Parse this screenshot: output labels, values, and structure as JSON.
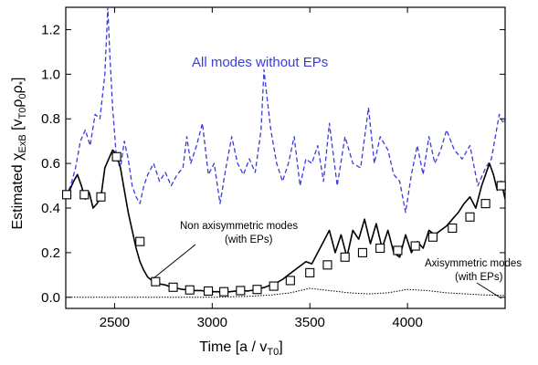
{
  "chart_data": {
    "type": "line",
    "xlabel": "Time [a / v_T0]",
    "ylabel": "Estimated χ_ExB [v_T0 ρ_0 ρ_*]",
    "xlim": [
      2250,
      4500
    ],
    "ylim": [
      -0.05,
      1.3
    ],
    "x_ticks": [
      2500,
      3000,
      3500,
      4000
    ],
    "y_ticks": [
      0.0,
      0.2,
      0.4,
      0.6,
      0.8,
      1.0,
      1.2
    ],
    "x_tick_labels": [
      "2500",
      "3000",
      "3500",
      "4000"
    ],
    "y_tick_labels": [
      "0.0",
      "0.2",
      "0.4",
      "0.6",
      "0.8",
      "1.0",
      "1.2"
    ],
    "grid": false,
    "annotations": [
      {
        "text": "All modes without EPs",
        "color": "#3b3bdc"
      },
      {
        "line1": "Non axisymmetric modes",
        "line2": "(with EPs)"
      },
      {
        "line1": "Axisymmetric modes",
        "line2": "(with EPs)"
      }
    ],
    "series": [
      {
        "style": "dashed",
        "color": "#3b3bdc",
        "x": [
          2250,
          2275,
          2300,
          2325,
          2350,
          2375,
          2400,
          2425,
          2450,
          2465,
          2475,
          2490,
          2510,
          2530,
          2550,
          2570,
          2590,
          2610,
          2630,
          2650,
          2670,
          2700,
          2730,
          2760,
          2790,
          2820,
          2850,
          2870,
          2890,
          2920,
          2950,
          2980,
          3010,
          3040,
          3070,
          3100,
          3130,
          3160,
          3190,
          3220,
          3250,
          3265,
          3280,
          3300,
          3330,
          3360,
          3390,
          3420,
          3450,
          3480,
          3510,
          3540,
          3570,
          3600,
          3640,
          3680,
          3720,
          3760,
          3800,
          3830,
          3860,
          3900,
          3930,
          3960,
          3990,
          4020,
          4050,
          4080,
          4110,
          4140,
          4170,
          4200,
          4240,
          4280,
          4320,
          4360,
          4400,
          4430,
          4450,
          4470,
          4490,
          4500
        ],
        "y": [
          0.45,
          0.5,
          0.58,
          0.7,
          0.75,
          0.68,
          0.82,
          0.8,
          1.0,
          1.3,
          1.1,
          0.85,
          0.62,
          0.58,
          0.7,
          0.62,
          0.5,
          0.45,
          0.42,
          0.5,
          0.55,
          0.6,
          0.52,
          0.56,
          0.5,
          0.55,
          0.58,
          0.72,
          0.6,
          0.68,
          0.78,
          0.55,
          0.6,
          0.42,
          0.58,
          0.72,
          0.6,
          0.55,
          0.62,
          0.56,
          0.75,
          1.02,
          0.9,
          0.75,
          0.6,
          0.52,
          0.6,
          0.72,
          0.5,
          0.62,
          0.6,
          0.68,
          0.52,
          0.78,
          0.5,
          0.72,
          0.6,
          0.58,
          0.85,
          0.6,
          0.72,
          0.66,
          0.55,
          0.52,
          0.38,
          0.55,
          0.68,
          0.55,
          0.72,
          0.6,
          0.66,
          0.75,
          0.66,
          0.62,
          0.68,
          0.5,
          0.58,
          0.62,
          0.72,
          0.82,
          0.78,
          0.8
        ]
      },
      {
        "style": "solid-squares",
        "color": "#000000",
        "x": [
          2250,
          2270,
          2290,
          2310,
          2330,
          2350,
          2370,
          2390,
          2410,
          2430,
          2450,
          2470,
          2490,
          2510,
          2530,
          2550,
          2570,
          2590,
          2610,
          2630,
          2650,
          2670,
          2700,
          2730,
          2760,
          2790,
          2820,
          2850,
          2880,
          2910,
          2940,
          2970,
          3000,
          3030,
          3060,
          3090,
          3120,
          3150,
          3180,
          3210,
          3240,
          3270,
          3300,
          3330,
          3360,
          3390,
          3420,
          3450,
          3480,
          3510,
          3540,
          3570,
          3600,
          3630,
          3660,
          3690,
          3720,
          3750,
          3780,
          3810,
          3840,
          3870,
          3900,
          3930,
          3960,
          3990,
          4020,
          4050,
          4080,
          4110,
          4140,
          4170,
          4200,
          4230,
          4260,
          4290,
          4320,
          4350,
          4380,
          4400,
          4420,
          4440,
          4460,
          4480,
          4500
        ],
        "y": [
          0.46,
          0.48,
          0.52,
          0.55,
          0.5,
          0.44,
          0.47,
          0.4,
          0.42,
          0.45,
          0.58,
          0.62,
          0.66,
          0.64,
          0.58,
          0.48,
          0.38,
          0.3,
          0.22,
          0.16,
          0.12,
          0.09,
          0.07,
          0.06,
          0.055,
          0.045,
          0.04,
          0.035,
          0.033,
          0.03,
          0.03,
          0.028,
          0.025,
          0.025,
          0.022,
          0.025,
          0.028,
          0.03,
          0.028,
          0.032,
          0.038,
          0.045,
          0.055,
          0.065,
          0.08,
          0.1,
          0.12,
          0.14,
          0.16,
          0.15,
          0.2,
          0.25,
          0.3,
          0.2,
          0.28,
          0.18,
          0.3,
          0.26,
          0.35,
          0.24,
          0.33,
          0.22,
          0.3,
          0.2,
          0.18,
          0.28,
          0.2,
          0.25,
          0.22,
          0.3,
          0.28,
          0.3,
          0.32,
          0.35,
          0.38,
          0.42,
          0.45,
          0.4,
          0.5,
          0.55,
          0.6,
          0.55,
          0.48,
          0.52,
          0.44
        ],
        "markers_x": [
          2255,
          2345,
          2430,
          2510,
          2630,
          2710,
          2800,
          2885,
          2980,
          3060,
          3145,
          3230,
          3315,
          3400,
          3500,
          3590,
          3680,
          3770,
          3860,
          3950,
          4040,
          4130,
          4230,
          4320,
          4400,
          4480
        ],
        "markers_y": [
          0.46,
          0.46,
          0.45,
          0.63,
          0.25,
          0.07,
          0.045,
          0.033,
          0.028,
          0.025,
          0.03,
          0.035,
          0.05,
          0.075,
          0.11,
          0.145,
          0.18,
          0.2,
          0.22,
          0.21,
          0.23,
          0.27,
          0.31,
          0.36,
          0.42,
          0.5
        ]
      },
      {
        "style": "dotted",
        "color": "#000000",
        "x": [
          2250,
          3000,
          3200,
          3300,
          3400,
          3500,
          3600,
          3700,
          3800,
          3900,
          4000,
          4100,
          4200,
          4300,
          4400,
          4500
        ],
        "y": [
          0.0,
          0.0,
          0.005,
          0.01,
          0.02,
          0.04,
          0.03,
          0.02,
          0.015,
          0.02,
          0.035,
          0.03,
          0.02,
          0.015,
          0.01,
          0.008
        ]
      }
    ]
  }
}
